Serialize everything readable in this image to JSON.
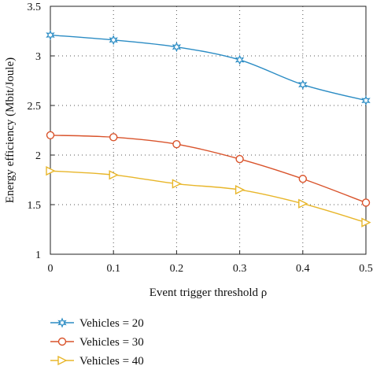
{
  "chart_data": {
    "type": "line",
    "xlabel": "Event trigger threshold ρ",
    "ylabel": "Energy efficiency (Mbit/Joule)",
    "x": [
      0,
      0.1,
      0.2,
      0.3,
      0.4,
      0.5
    ],
    "xlim": [
      0,
      0.5
    ],
    "ylim": [
      1,
      3.5
    ],
    "xticks": [
      "0",
      "0.1",
      "0.2",
      "0.3",
      "0.4",
      "0.5"
    ],
    "yticks": [
      "1",
      "1.5",
      "2",
      "2.5",
      "3",
      "3.5"
    ],
    "grid": true,
    "legend_placement": "below",
    "series": [
      {
        "name": "Vehicles = 20",
        "color": "#2b8cc4",
        "marker": "star",
        "values": [
          3.21,
          3.16,
          3.09,
          2.96,
          2.71,
          2.55
        ]
      },
      {
        "name": "Vehicles = 30",
        "color": "#d9532b",
        "marker": "circle",
        "values": [
          2.2,
          2.18,
          2.11,
          1.96,
          1.76,
          1.52
        ]
      },
      {
        "name": "Vehicles = 40",
        "color": "#e8b62a",
        "marker": "triangle-right",
        "values": [
          1.84,
          1.8,
          1.71,
          1.65,
          1.51,
          1.32
        ]
      }
    ]
  }
}
